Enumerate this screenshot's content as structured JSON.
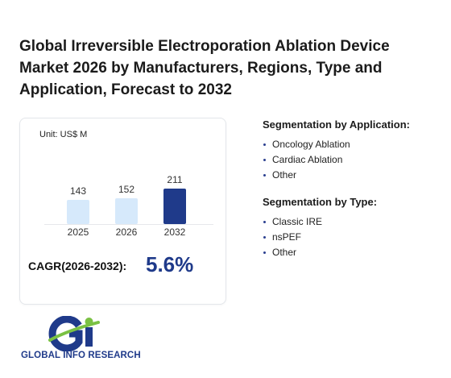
{
  "title": "Global Irreversible Electroporation Ablation Device Market 2026 by Manufacturers, Regions, Type and Application, Forecast to 2032",
  "chart_data": {
    "type": "bar",
    "unit_label": "Unit: US$ M",
    "categories": [
      "2025",
      "2026",
      "2032"
    ],
    "values": [
      143,
      152,
      211
    ],
    "colors": [
      "#d6e9fb",
      "#d6e9fb",
      "#1f3a8a"
    ],
    "cagr_label": "CAGR(2026-2032):",
    "cagr_value": "5.6%"
  },
  "segments": {
    "application": {
      "title": "Segmentation by Application:",
      "items": [
        "Oncology Ablation",
        "Cardiac Ablation",
        "Other"
      ]
    },
    "type": {
      "title": "Segmentation by Type:",
      "items": [
        "Classic IRE",
        "nsPEF",
        "Other"
      ]
    }
  },
  "logo": {
    "text": "GLOBAL INFO RESEARCH"
  }
}
